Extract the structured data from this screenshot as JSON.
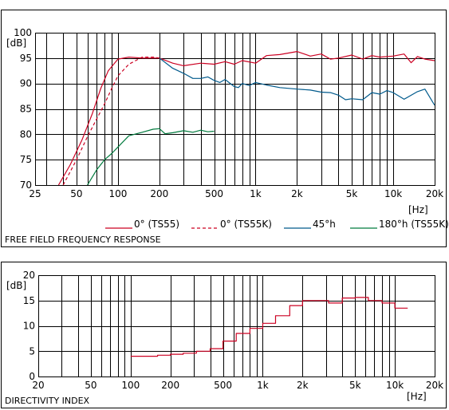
{
  "charts": {
    "frequency_response": {
      "title": "FREE FIELD FREQUENCY RESPONSE",
      "y_unit": "[dB]",
      "x_unit": "[Hz]"
    },
    "directivity_index": {
      "title": "DIRECTIVITY INDEX",
      "y_unit": "[dB]",
      "x_unit": "[Hz]"
    }
  },
  "colors": {
    "red": "#cc0022",
    "blue": "#005a8c",
    "green": "#007a3d",
    "grid": "#000000"
  },
  "chart_data": [
    {
      "type": "line",
      "title": "FREE FIELD FREQUENCY RESPONSE",
      "xscale": "log",
      "xlim": [
        25,
        20000
      ],
      "ylim": [
        70,
        100
      ],
      "xticks": [
        25,
        50,
        100,
        200,
        500,
        1000,
        2000,
        5000,
        10000,
        20000
      ],
      "xtick_labels": [
        "25",
        "50",
        "100",
        "200",
        "500",
        "1k",
        "2k",
        "5k",
        "10k",
        "20k"
      ],
      "yticks": [
        70,
        75,
        80,
        85,
        90,
        95,
        100
      ],
      "ytick_labels": [
        "70",
        "75",
        "80",
        "85",
        "90",
        "95",
        "100"
      ],
      "ylabel": "[dB]",
      "xlabel": "[Hz]",
      "grid": true,
      "legend_position": "bottom",
      "series": [
        {
          "name": "0° (TS55)",
          "style": "solid",
          "color": "#cc0022",
          "x": [
            37,
            45,
            55,
            65,
            75,
            85,
            100,
            120,
            150,
            200,
            250,
            300,
            400,
            500,
            600,
            700,
            800,
            1000,
            1200,
            1500,
            2000,
            2500,
            3000,
            3500,
            4000,
            5000,
            6000,
            7000,
            8000,
            10000,
            12000,
            13500,
            15000,
            17000,
            20000
          ],
          "y": [
            70,
            74,
            79,
            84,
            89,
            92.5,
            94.8,
            95.2,
            95,
            95,
            94,
            93.5,
            94,
            93.8,
            94.3,
            93.8,
            94.5,
            94,
            95.5,
            95.7,
            96.3,
            95.4,
            95.8,
            94.8,
            95,
            95.6,
            94.8,
            95.5,
            95.2,
            95.4,
            95.8,
            94.1,
            95.3,
            94.8,
            94.5
          ]
        },
        {
          "name": "0° (TS55K)",
          "style": "dashed",
          "color": "#cc0022",
          "x": [
            40,
            50,
            60,
            70,
            80,
            90,
            100,
            120,
            150,
            180,
            200
          ],
          "y": [
            70,
            75,
            79.5,
            83,
            86,
            89,
            91.5,
            93.8,
            95.2,
            95.2,
            95
          ]
        },
        {
          "name": "45°h",
          "style": "solid",
          "color": "#005a8c",
          "x": [
            200,
            250,
            300,
            350,
            400,
            450,
            500,
            550,
            600,
            700,
            750,
            800,
            900,
            1000,
            1200,
            1500,
            2000,
            2500,
            3000,
            3500,
            4000,
            4500,
            5000,
            6000,
            7000,
            8000,
            9000,
            10000,
            12000,
            15000,
            17000,
            20000
          ],
          "y": [
            95,
            93,
            92,
            91,
            91,
            91.3,
            90.6,
            90.2,
            90.8,
            89.4,
            89.2,
            90,
            89.6,
            90.2,
            89.7,
            89.2,
            88.9,
            88.7,
            88.3,
            88.2,
            87.7,
            86.8,
            87,
            86.8,
            88.2,
            87.9,
            88.6,
            88.2,
            86.9,
            88.4,
            88.9,
            85.7
          ]
        },
        {
          "name": "180°h (TS55K)",
          "style": "solid",
          "color": "#007a3d",
          "x": [
            60,
            70,
            80,
            90,
            100,
            120,
            150,
            180,
            200,
            220,
            250,
            300,
            350,
            400,
            450,
            500
          ],
          "y": [
            70,
            73,
            75,
            76.2,
            77.5,
            79.7,
            80.4,
            81,
            81.1,
            80.1,
            80.3,
            80.7,
            80.4,
            80.8,
            80.5,
            80.6
          ]
        }
      ]
    },
    {
      "type": "line",
      "title": "DIRECTIVITY INDEX",
      "xscale": "log",
      "xlim": [
        20,
        20000
      ],
      "ylim": [
        0,
        20
      ],
      "xticks": [
        20,
        50,
        100,
        200,
        500,
        1000,
        2000,
        5000,
        10000,
        20000
      ],
      "xtick_labels": [
        "20",
        "50",
        "100",
        "200",
        "500",
        "1k",
        "2k",
        "5k",
        "10k",
        "20k"
      ],
      "yticks": [
        0,
        5,
        10,
        15,
        20
      ],
      "ytick_labels": [
        "0",
        "5",
        "10",
        "15",
        "20"
      ],
      "ylabel": "[dB]",
      "xlabel": "[Hz]",
      "grid": true,
      "series": [
        {
          "style": "step",
          "color": "#cc0022",
          "x": [
            100,
            125,
            160,
            200,
            250,
            315,
            400,
            500,
            630,
            800,
            1000,
            1250,
            1600,
            2000,
            2500,
            3150,
            4000,
            5000,
            6300,
            8000,
            10000
          ],
          "y": [
            4,
            4,
            4.2,
            4.4,
            4.6,
            5,
            5.5,
            7,
            8.5,
            9.5,
            10.5,
            12,
            14,
            15,
            15,
            14.5,
            15.5,
            15.6,
            15,
            14.5,
            13.5
          ]
        }
      ]
    }
  ]
}
